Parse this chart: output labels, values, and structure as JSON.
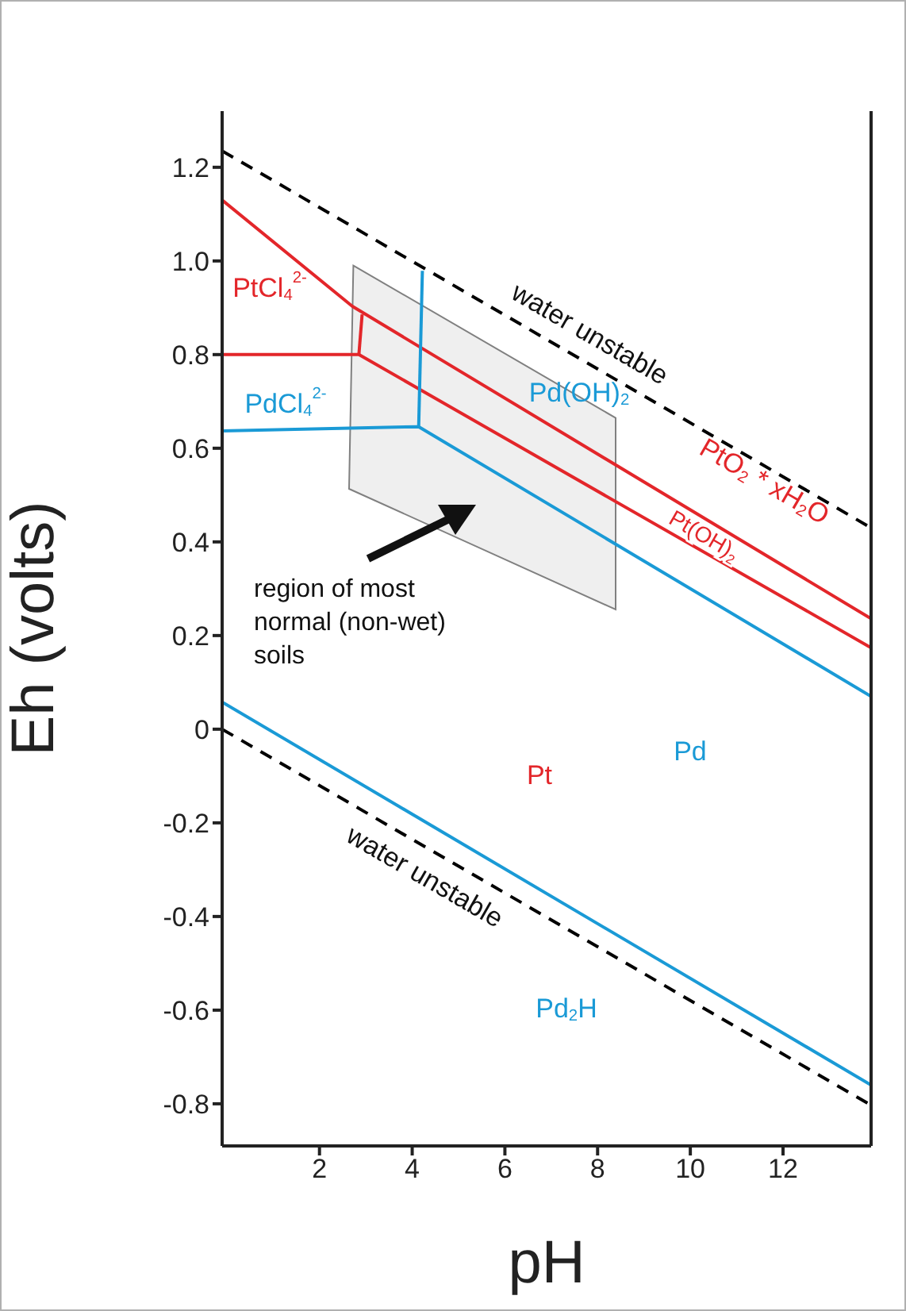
{
  "chart_data": {
    "type": "line",
    "xlabel": "pH",
    "ylabel": "Eh (volts)",
    "xlim": [
      -0.1,
      13.9
    ],
    "ylim": [
      -0.89,
      1.32
    ],
    "xticks": [
      2,
      4,
      6,
      8,
      10,
      12
    ],
    "yticks": [
      -0.8,
      -0.6,
      -0.4,
      -0.2,
      0,
      0.2,
      0.4,
      0.6,
      0.8,
      {
        "value": 1,
        "label": "1.0"
      },
      1.2
    ],
    "marker": "none",
    "line_style": "solid",
    "series": [
      {
        "color": "#000000",
        "line_style": "dashed",
        "x": [
          -0.1,
          13.9
        ],
        "values": [
          1.235,
          0.43
        ]
      },
      {
        "color": "#000000",
        "line_style": "dashed",
        "x": [
          -0.1,
          13.9
        ],
        "values": [
          0,
          -0.803
        ]
      },
      {
        "color": "#e3262a",
        "x": [
          -0.1,
          2.71,
          13.9
        ],
        "values": [
          1.13,
          0.903,
          0.236
        ]
      },
      {
        "color": "#e3262a",
        "x": [
          -0.1,
          2.85,
          13.9
        ],
        "values": [
          0.8,
          0.8,
          0.174
        ]
      },
      {
        "color": "#e3262a",
        "x": [
          2.85,
          2.92
        ],
        "values": [
          0.8,
          0.886
        ]
      },
      {
        "color": "#1a9ad6",
        "x": [
          -0.1,
          4.14,
          13.9
        ],
        "values": [
          0.637,
          0.646,
          0.07
        ]
      },
      {
        "color": "#1a9ad6",
        "x": [
          4.14,
          4.22
        ],
        "values": [
          0.646,
          0.979
        ]
      },
      {
        "color": "#1a9ad6",
        "x": [
          -0.1,
          13.9
        ],
        "values": [
          0.058,
          -0.76
        ]
      }
    ],
    "annotations": [
      "PtCl$_{4}$$^{2-}$",
      "PdCl$_{4}$$^{2-}$",
      "Pd(OH)$_{2}$",
      "water unstable",
      "PtO$_{2}$ * xH$_{2}$O",
      "Pt(OH)$_{2}$",
      "region of most normal (non-wet) soils",
      "Pt",
      "Pd",
      "water unstable",
      "Pd$_{2}$H"
    ]
  }
}
